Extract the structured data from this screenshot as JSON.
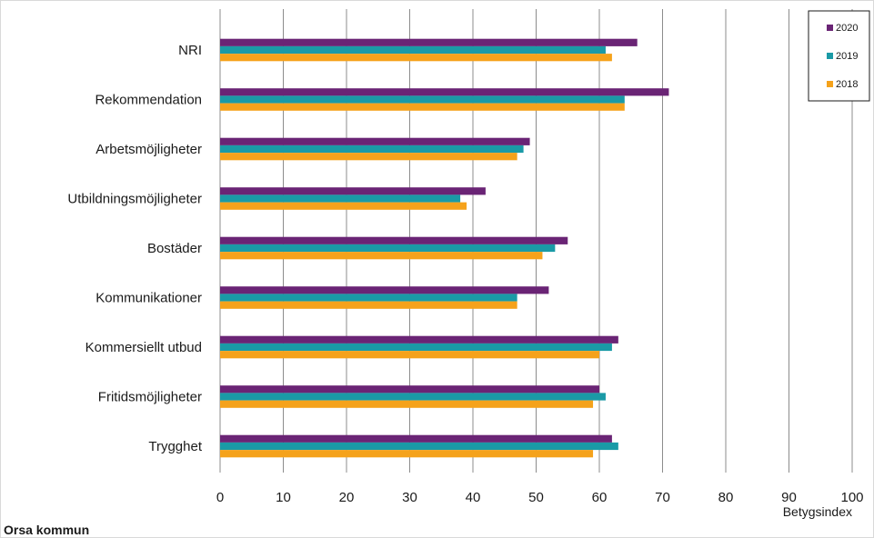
{
  "footer_title": "Orsa kommun",
  "chart_data": {
    "type": "bar",
    "orientation": "horizontal",
    "categories": [
      "NRI",
      "Rekommendation",
      "Arbetsmöjligheter",
      "Utbildningsmöjligheter",
      "Bostäder",
      "Kommunikationer",
      "Kommersiellt utbud",
      "Fritidsmöjligheter",
      "Trygghet"
    ],
    "series": [
      {
        "name": "2020",
        "color": "#6a2475",
        "values": [
          66,
          71,
          49,
          42,
          55,
          52,
          63,
          60,
          62
        ]
      },
      {
        "name": "2019",
        "color": "#1a9aa6",
        "values": [
          61,
          64,
          48,
          38,
          53,
          47,
          62,
          61,
          63
        ]
      },
      {
        "name": "2018",
        "color": "#f5a21b",
        "values": [
          62,
          64,
          47,
          39,
          51,
          47,
          60,
          59,
          59
        ]
      }
    ],
    "xlabel": "Betygsindex",
    "xlim": [
      0,
      100
    ],
    "xticks": [
      0,
      10,
      20,
      30,
      40,
      50,
      60,
      70,
      80,
      90,
      100
    ],
    "grid": true,
    "legend_position": "top-right"
  }
}
